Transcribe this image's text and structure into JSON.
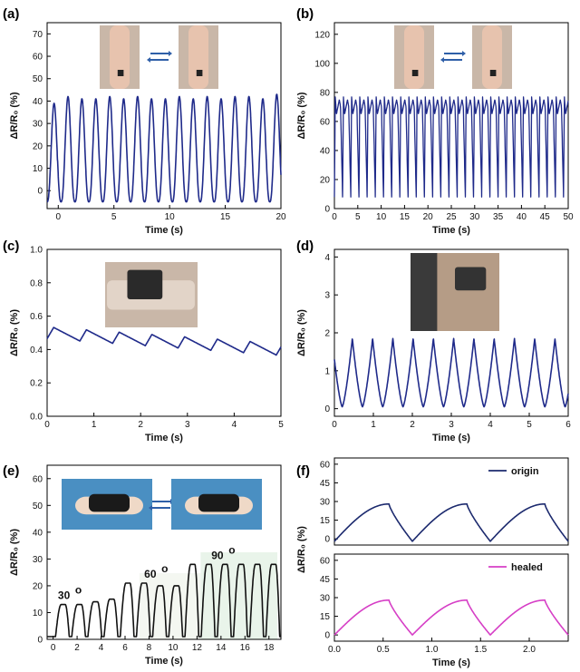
{
  "chart_data": [
    {
      "id": "a",
      "panel_label": "(a)",
      "type": "line",
      "xlabel": "Time (s)",
      "ylabel": "ΔR/R₀ (%)",
      "xlim": [
        -1,
        20
      ],
      "ylim": [
        -8,
        75
      ],
      "xticks": [
        0,
        5,
        10,
        15,
        20
      ],
      "yticks": [
        0,
        10,
        20,
        30,
        40,
        50,
        60,
        70
      ],
      "color": "#1f2a8a",
      "signal": {
        "kind": "sine",
        "period": 1.25,
        "min": -5,
        "max": 42
      },
      "series": [
        {
          "x_range": [
            -1,
            20
          ],
          "peaks_y": [
            39,
            42,
            41,
            41,
            42,
            41,
            42,
            41,
            41,
            42,
            41,
            42,
            41,
            42,
            42,
            41,
            43
          ]
        }
      ],
      "inset": "elbow bending photos"
    },
    {
      "id": "b",
      "panel_label": "(b)",
      "type": "line",
      "xlabel": "Time (s)",
      "ylabel": "ΔR/R₀ (%)",
      "xlim": [
        0,
        50
      ],
      "ylim": [
        0,
        128
      ],
      "xticks": [
        0,
        5,
        10,
        15,
        20,
        25,
        30,
        35,
        40,
        45,
        50
      ],
      "yticks": [
        0,
        20,
        40,
        60,
        80,
        100,
        120
      ],
      "color": "#1f2a8a",
      "signal": {
        "kind": "spikes",
        "period": 1.75,
        "min": 8,
        "max": 77
      },
      "series": [
        {
          "x_range": [
            0,
            50
          ]
        }
      ],
      "inset": "elbow bending photos"
    },
    {
      "id": "c",
      "panel_label": "(c)",
      "type": "line",
      "xlabel": "Time (s)",
      "ylabel": "ΔR/R₀ (%)",
      "xlim": [
        0,
        5
      ],
      "ylim": [
        0,
        1.0
      ],
      "xticks": [
        0,
        1,
        2,
        3,
        4,
        5
      ],
      "yticks": [
        0.0,
        0.2,
        0.4,
        0.6,
        0.8,
        1.0
      ],
      "color": "#1f2a8a",
      "signal": {
        "kind": "sawtooth",
        "period": 0.7,
        "start": 0.5,
        "end": 0.4,
        "amp": 0.035
      },
      "series": [
        {
          "x_range": [
            0,
            5
          ]
        }
      ],
      "inset": "sensor on wrist photo"
    },
    {
      "id": "d",
      "panel_label": "(d)",
      "type": "line",
      "xlabel": "Time (s)",
      "ylabel": "ΔR/R₀ (%)",
      "xlim": [
        0,
        6
      ],
      "ylim": [
        -0.2,
        4.2
      ],
      "xticks": [
        0,
        1,
        2,
        3,
        4,
        5,
        6
      ],
      "yticks": [
        0,
        1,
        2,
        3,
        4
      ],
      "color": "#1f2a8a",
      "signal": {
        "kind": "triangle",
        "period": 0.52,
        "min": 0.05,
        "max": 1.85
      },
      "series": [
        {
          "x_range": [
            0,
            6
          ]
        }
      ],
      "inset": "sensor on throat photo"
    },
    {
      "id": "e",
      "panel_label": "(e)",
      "type": "line",
      "xlabel": "Time (s)",
      "ylabel": "ΔR/R₀ (%)",
      "xlim": [
        -0.5,
        19
      ],
      "ylim": [
        0,
        65
      ],
      "xticks": [
        0,
        2,
        4,
        6,
        8,
        10,
        12,
        14,
        16,
        18
      ],
      "yticks": [
        0,
        10,
        20,
        30,
        40,
        50,
        60
      ],
      "color": "#111111",
      "signal": {
        "kind": "steps",
        "period": 1.35
      },
      "series": [
        {
          "x_range": [
            -0.5,
            19
          ],
          "peaks_y": [
            13,
            13,
            14,
            15,
            21,
            21,
            20,
            20,
            28,
            28,
            28,
            28,
            28
          ]
        }
      ],
      "annotations": [
        {
          "text": "30",
          "sup": "o",
          "x": 0.4,
          "y": 15
        },
        {
          "text": "60",
          "sup": "o",
          "x": 7.6,
          "y": 23
        },
        {
          "text": "90",
          "sup": "o",
          "x": 13.2,
          "y": 30
        }
      ],
      "inset": "finger bending photos"
    },
    {
      "id": "f",
      "panel_label": "(f)",
      "type": "line",
      "xlabel": "Time (s)",
      "ylabel": "ΔR/R₀ (%)",
      "xlim": [
        0,
        2.4
      ],
      "xticks": [
        0.0,
        0.5,
        1.0,
        1.5,
        2.0
      ],
      "subplots": [
        {
          "id": "f_top",
          "ylim": [
            -5,
            65
          ],
          "yticks": [
            0,
            15,
            30,
            45,
            60
          ],
          "color": "#1c2a6e",
          "signal": {
            "kind": "rise-drop",
            "period": 0.8,
            "min": -2,
            "max": 28
          },
          "series": [
            {
              "name": "origin"
            }
          ]
        },
        {
          "id": "f_bottom",
          "ylim": [
            -5,
            65
          ],
          "yticks": [
            0,
            15,
            30,
            45,
            60
          ],
          "color": "#d63fc6",
          "signal": {
            "kind": "rise-drop",
            "period": 0.8,
            "min": 0,
            "max": 28
          },
          "series": [
            {
              "name": "healed"
            }
          ]
        }
      ]
    }
  ]
}
